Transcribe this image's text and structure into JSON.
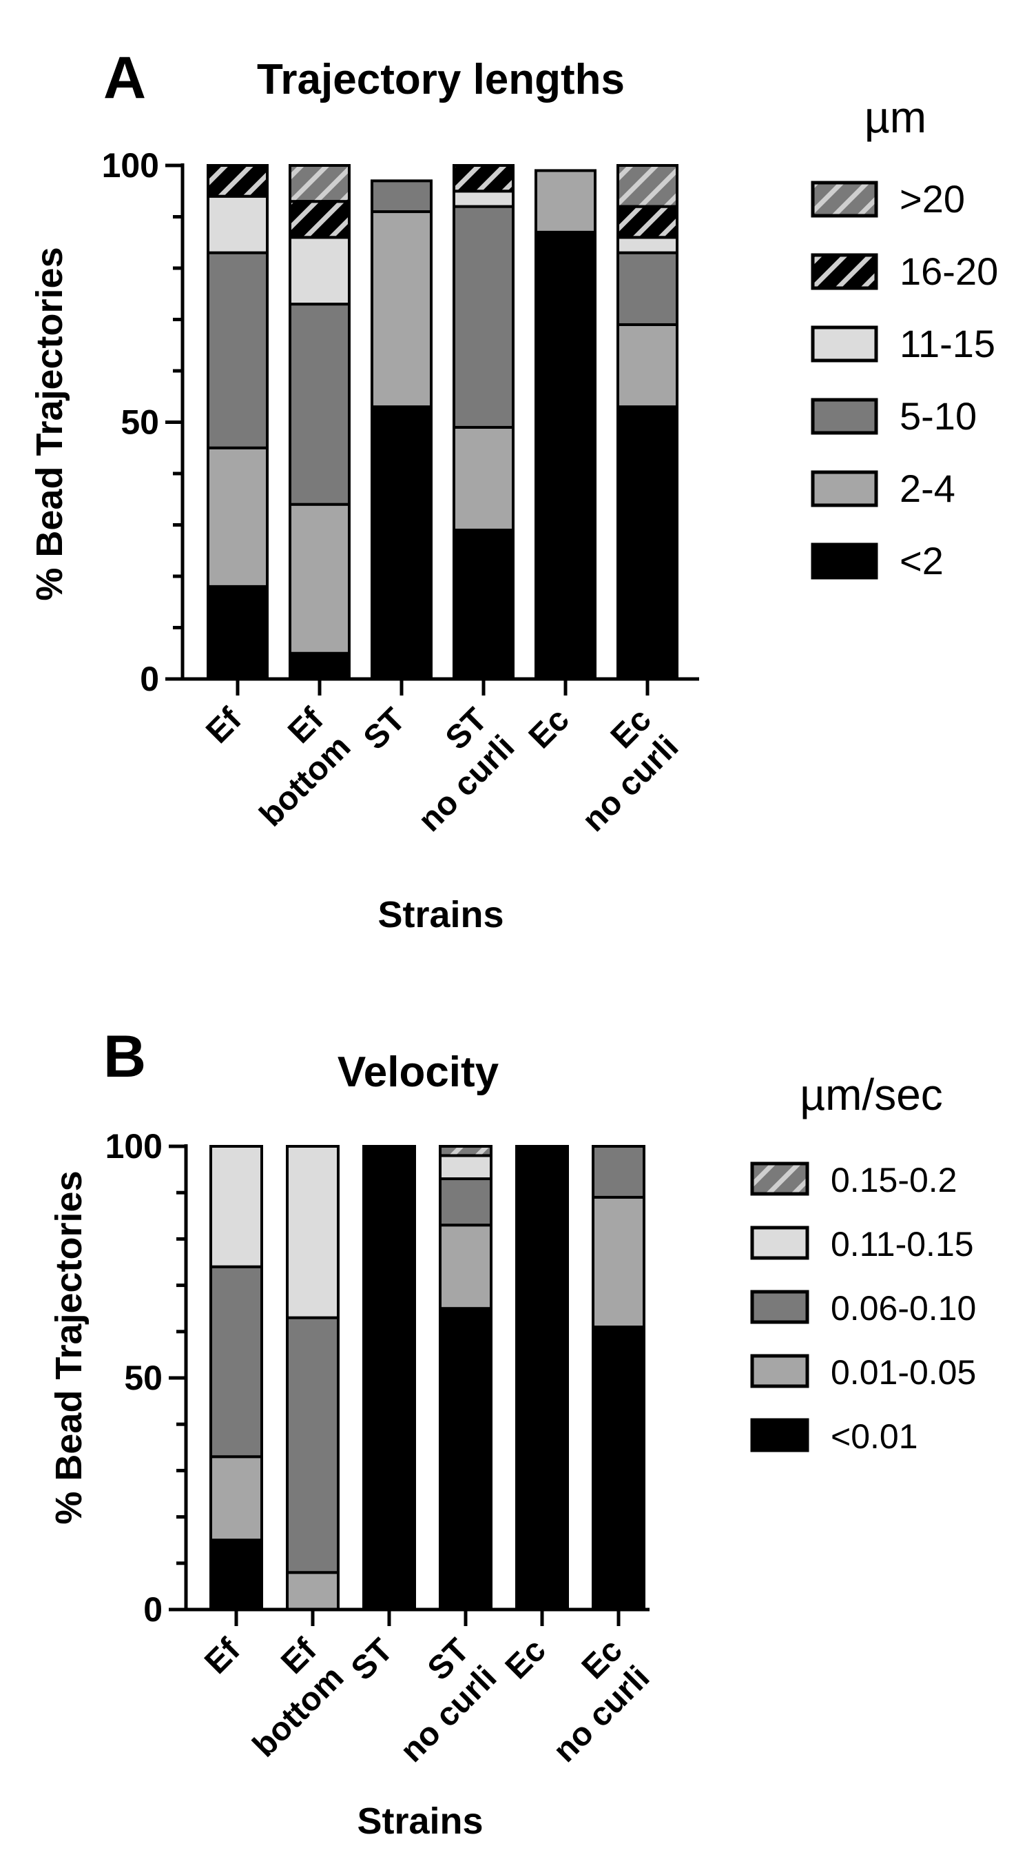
{
  "chart_data": [
    {
      "panel": "A",
      "type": "bar",
      "stacked": true,
      "title": "Trajectory lengths",
      "xlabel": "Strains",
      "ylabel": "% Bead Trajectories",
      "ylim": [
        0,
        100
      ],
      "yticks": [
        "0",
        "50",
        "100"
      ],
      "categories": [
        [
          "Ef"
        ],
        [
          "Ef",
          "bottom"
        ],
        [
          "ST"
        ],
        [
          "ST",
          "no curli"
        ],
        [
          "Ec"
        ],
        [
          "Ec",
          "no curli"
        ]
      ],
      "legend_title": "µm",
      "legend_position": "right",
      "series": [
        {
          "name": "<2",
          "color": "#000000",
          "hatch": false,
          "values": [
            18,
            5,
            53,
            29,
            87,
            53
          ]
        },
        {
          "name": "2-4",
          "color": "#a6a6a6",
          "hatch": false,
          "values": [
            27,
            29,
            38,
            20,
            12,
            16
          ]
        },
        {
          "name": "5-10",
          "color": "#7a7a7a",
          "hatch": false,
          "values": [
            38,
            39,
            6,
            43,
            0,
            14
          ]
        },
        {
          "name": "11-15",
          "color": "#dcdcdc",
          "hatch": false,
          "values": [
            11,
            13,
            0,
            3,
            0,
            3
          ]
        },
        {
          "name": "16-20",
          "color": "#000000",
          "hatch": true,
          "values": [
            6,
            7,
            0,
            5,
            0,
            6
          ]
        },
        {
          "name": ">20",
          "color": "#7a7a7a",
          "hatch": true,
          "values": [
            0,
            7,
            0,
            0,
            0,
            8
          ]
        }
      ]
    },
    {
      "panel": "B",
      "type": "bar",
      "stacked": true,
      "title": "Velocity",
      "xlabel": "Strains",
      "ylabel": "% Bead Trajectories",
      "ylim": [
        0,
        100
      ],
      "yticks": [
        "0",
        "50",
        "100"
      ],
      "categories": [
        [
          "Ef"
        ],
        [
          "Ef",
          "bottom"
        ],
        [
          "ST"
        ],
        [
          "ST",
          "no curli"
        ],
        [
          "Ec"
        ],
        [
          "Ec",
          "no curli"
        ]
      ],
      "legend_title": "µm/sec",
      "legend_position": "right",
      "series": [
        {
          "name": "<0.01",
          "color": "#000000",
          "hatch": false,
          "values": [
            15,
            0,
            100,
            65,
            100,
            61
          ]
        },
        {
          "name": "0.01-0.05",
          "color": "#a6a6a6",
          "hatch": false,
          "values": [
            18,
            8,
            0,
            18,
            0,
            28
          ]
        },
        {
          "name": "0.06-0.10",
          "color": "#7a7a7a",
          "hatch": false,
          "values": [
            41,
            55,
            0,
            10,
            0,
            11
          ]
        },
        {
          "name": "0.11-0.15",
          "color": "#dcdcdc",
          "hatch": false,
          "values": [
            26,
            37,
            0,
            5,
            0,
            0
          ]
        },
        {
          "name": "0.15-0.2",
          "color": "#7a7a7a",
          "hatch": true,
          "values": [
            0,
            0,
            0,
            2,
            0,
            0
          ]
        }
      ]
    }
  ]
}
